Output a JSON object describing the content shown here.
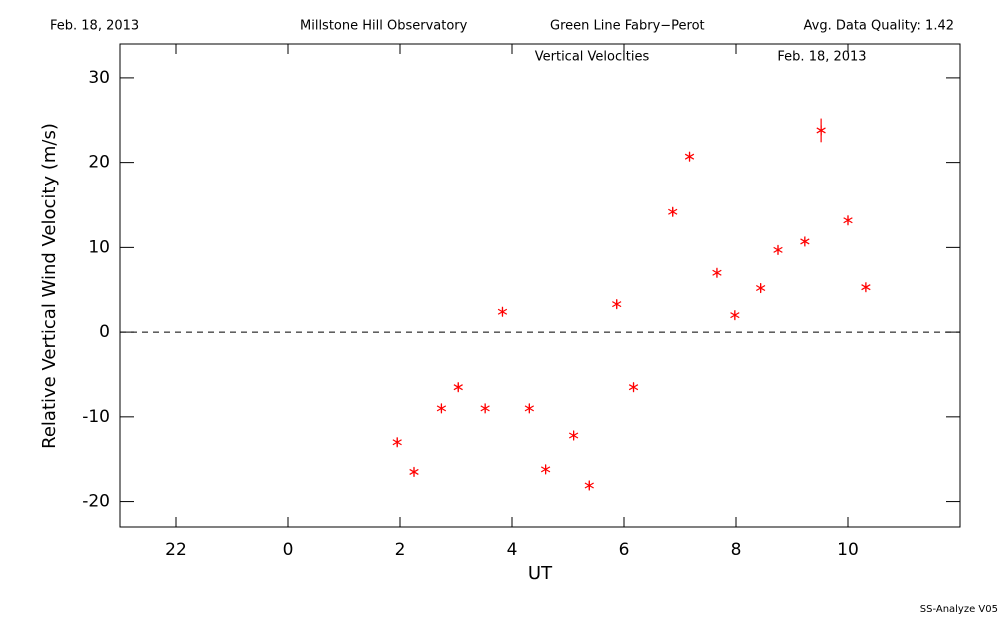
{
  "chart_data": {
    "type": "scatter",
    "header": [
      "Feb. 18, 2013",
      "Millstone Hill Observatory",
      "Green Line Fabry−Perot",
      "Avg. Data Quality: 1.42"
    ],
    "title": "Vertical Velocities",
    "subtitle": "Feb. 18, 2013",
    "xlabel": "UT",
    "ylabel": "Relative Vertical Wind Velocity (m/s)",
    "footer": "SS-Analyze V05",
    "x": [
      1.95,
      2.25,
      2.74,
      3.04,
      3.52,
      3.83,
      4.31,
      4.6,
      5.1,
      5.38,
      5.87,
      6.17,
      6.87,
      7.17,
      7.66,
      7.98,
      8.44,
      8.75,
      9.23,
      9.52,
      10.0,
      10.32
    ],
    "values": [
      -13.0,
      -16.5,
      -9.0,
      -6.5,
      -9.0,
      2.4,
      -9.0,
      -16.2,
      -12.2,
      -18.1,
      3.3,
      -6.5,
      14.2,
      20.7,
      7.0,
      2.0,
      5.2,
      9.7,
      10.7,
      23.8,
      13.2,
      5.3
    ],
    "errors": [
      0.5,
      0.5,
      0.5,
      0.5,
      0.5,
      0.5,
      0.5,
      0.5,
      0.5,
      0.5,
      0.5,
      0.5,
      0.5,
      0.5,
      0.5,
      0.5,
      0.5,
      0.5,
      0.5,
      1.4,
      0.5,
      0.5
    ],
    "color": "#ff0000",
    "reference_line": 0,
    "xlim": [
      -3,
      12
    ],
    "ylim": [
      -23,
      34
    ],
    "xticks": [
      {
        "value": -2,
        "label": "22"
      },
      0,
      2,
      4,
      6,
      8,
      10
    ],
    "yticks": [
      -20,
      -10,
      0,
      10,
      20,
      30
    ]
  }
}
